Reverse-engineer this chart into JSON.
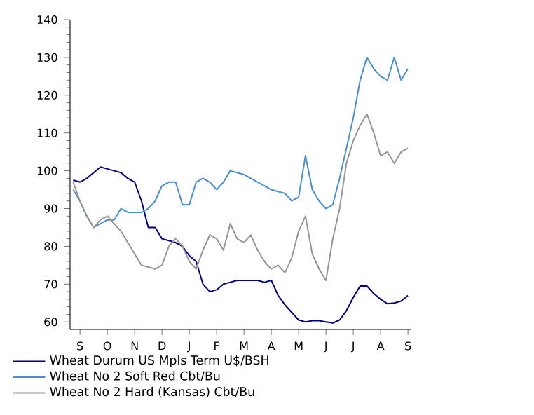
{
  "chart_data": {
    "type": "line",
    "ylim": [
      58,
      140
    ],
    "categories": [
      null,
      "S",
      null,
      null,
      null,
      "O",
      null,
      null,
      null,
      "N",
      null,
      null,
      null,
      "D",
      null,
      null,
      null,
      "J",
      null,
      null,
      null,
      "F",
      null,
      null,
      null,
      "M",
      null,
      null,
      null,
      "A",
      null,
      null,
      null,
      "M",
      null,
      null,
      null,
      "J",
      null,
      null,
      null,
      "J",
      null,
      null,
      null,
      "A",
      null,
      null,
      null,
      "S"
    ],
    "yticks": [
      60,
      70,
      80,
      90,
      100,
      110,
      120,
      130,
      140
    ],
    "grid": false,
    "legend": "bottom left",
    "marker": "none",
    "line_style": "solid",
    "series": [
      {
        "name": "Wheat Durum US Mpls Term U$/BSH",
        "color": "#000080",
        "values": [
          97.5,
          97,
          98,
          99.5,
          101,
          100.5,
          100,
          99.5,
          98,
          97,
          92,
          85,
          85,
          82,
          81.5,
          81,
          80,
          77.5,
          76,
          70,
          68,
          68.5,
          70,
          70.5,
          71,
          71,
          71,
          71,
          70.5,
          71,
          67,
          64.5,
          62.5,
          60.5,
          60,
          60.3,
          60.3,
          60,
          59.7,
          60.5,
          63,
          66.5,
          69.5,
          69.5,
          67.5,
          66,
          64.8,
          65,
          65.5,
          67
        ]
      },
      {
        "name": "Wheat No 2 Soft Red Cbt/Bu",
        "color": "#4a8fd4",
        "values": [
          95,
          92,
          88,
          85,
          86,
          87,
          87,
          90,
          89,
          89,
          89,
          90,
          92,
          96,
          97,
          97,
          91,
          91,
          97,
          98,
          97,
          95,
          97,
          100,
          99.5,
          99,
          98,
          97,
          96,
          95,
          94.5,
          94,
          92,
          93,
          104,
          95,
          92,
          90,
          91,
          98,
          106,
          114,
          124,
          130,
          127,
          125,
          124,
          130,
          124,
          127
        ]
      },
      {
        "name": "Wheat No 2 Hard (Kansas) Cbt/Bu",
        "color": "#969696",
        "values": [
          97,
          92,
          88,
          85,
          87,
          88,
          86,
          84,
          81,
          78,
          75,
          74.5,
          74,
          75,
          80,
          82,
          80,
          76,
          74,
          79,
          83,
          82,
          79,
          86,
          82,
          81,
          83,
          79,
          76,
          74,
          75,
          73,
          77,
          84,
          88,
          78,
          74,
          71,
          82,
          90,
          102,
          108,
          112,
          115,
          110,
          104,
          105,
          102,
          105,
          106
        ]
      }
    ]
  }
}
